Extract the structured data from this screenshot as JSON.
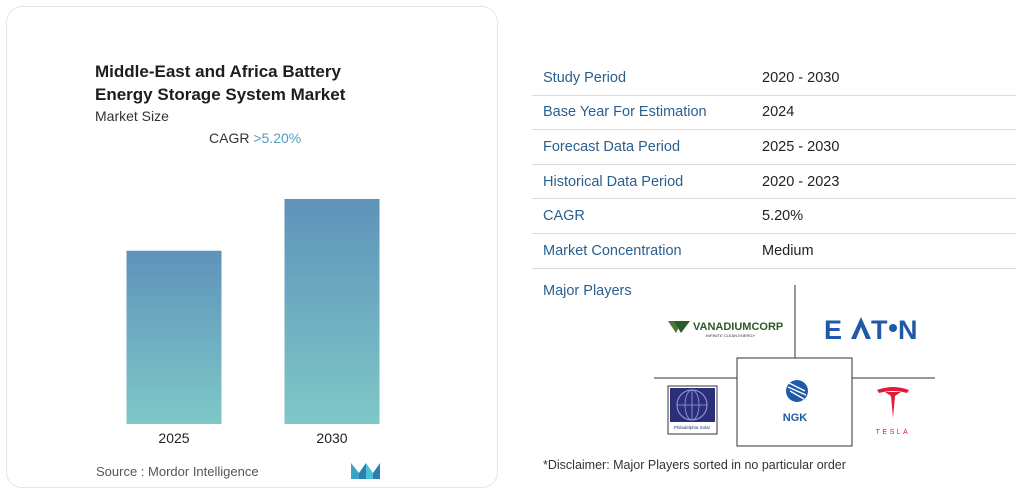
{
  "chart_data": {
    "type": "bar",
    "title": "Middle-East and Africa Battery Energy Storage System Market",
    "subtitle": "Market Size",
    "cagr_label": "CAGR",
    "cagr_value": ">5.20%",
    "categories": [
      "2025",
      "2030"
    ],
    "values": [
      0.77,
      1.0
    ],
    "ylim": [
      0,
      1.0
    ],
    "grid": false,
    "source": "Source :  Mordor Intelligence",
    "colors": {
      "bar_top": "#5f93ba",
      "bar_bottom": "#7ec8c8"
    }
  },
  "info_table": [
    {
      "key": "Study Period",
      "value": "2020 - 2030"
    },
    {
      "key": "Base Year For Estimation",
      "value": "2024"
    },
    {
      "key": "Forecast Data Period",
      "value": "2025 - 2030"
    },
    {
      "key": "Historical Data Period",
      "value": "2020 - 2023"
    },
    {
      "key": "CAGR",
      "value": "5.20%"
    },
    {
      "key": "Market Concentration",
      "value": "Medium"
    }
  ],
  "major_players_label": "Major Players",
  "logos": {
    "vanadiumcorp": {
      "name": "VANADIUMCORP",
      "tagline": "INFINITE CLEAN ENERGY"
    },
    "eaton": {
      "name": "E·T·N"
    },
    "philadelphia_solar": {
      "name": "Philadelphia Solar"
    },
    "ngk": {
      "name": "NGK"
    },
    "tesla": {
      "name": "TESLA"
    }
  },
  "disclaimer": "*Disclaimer: Major Players sorted in no particular order"
}
